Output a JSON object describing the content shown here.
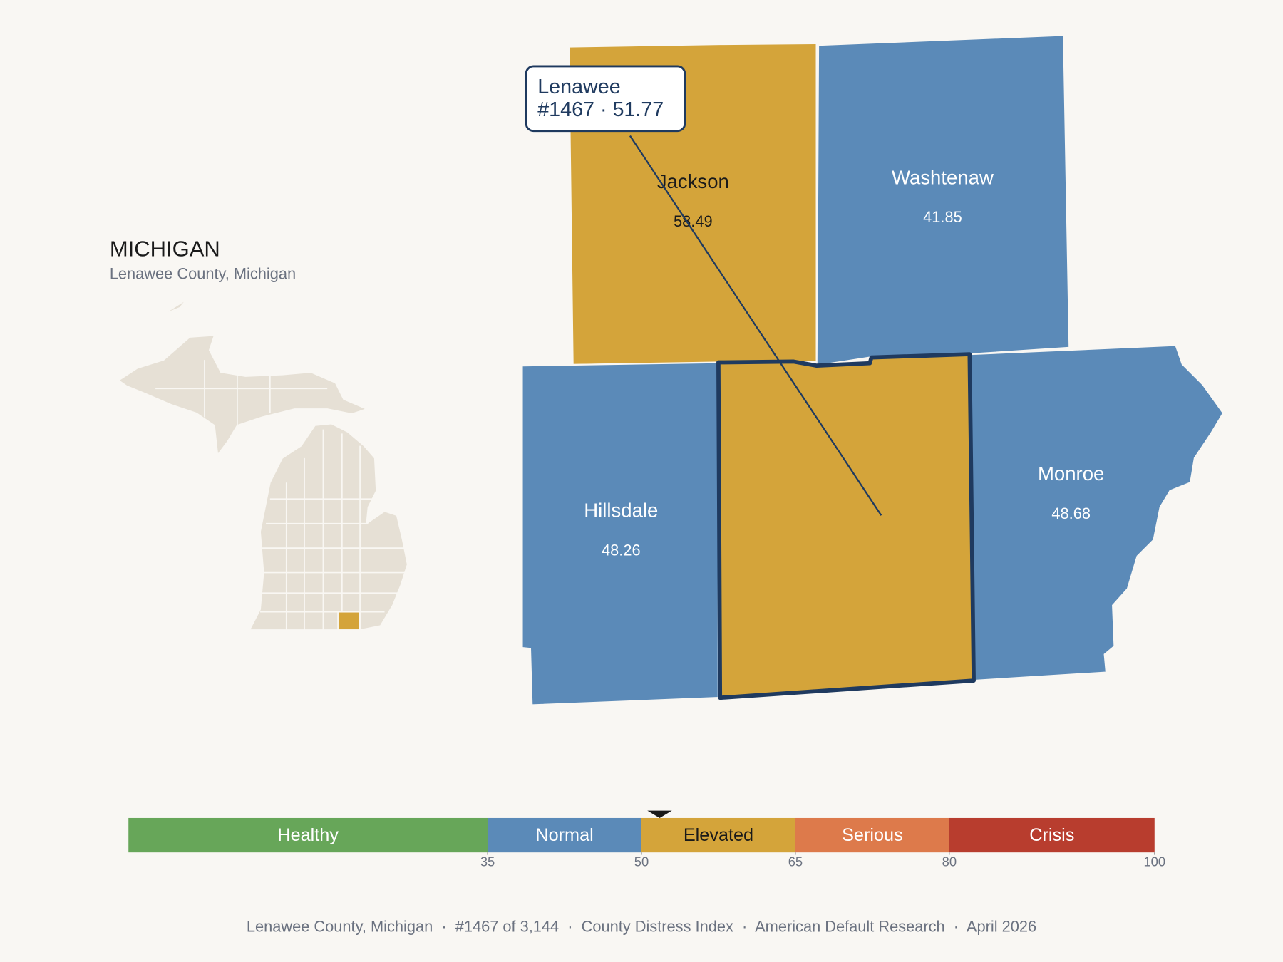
{
  "header": {
    "title": "MICHIGAN",
    "subtitle": "Lenawee County, Michigan"
  },
  "counties": [
    {
      "name": "Jackson",
      "value": 58.49
    },
    {
      "name": "Washtenaw",
      "value": 41.85
    },
    {
      "name": "Hillsdale",
      "value": 48.26
    },
    {
      "name": "Monroe",
      "value": 48.68
    }
  ],
  "callout": {
    "name": "Lenawee",
    "text": "#1467 · 51.77",
    "value": 51.77
  },
  "scale": {
    "min": 0,
    "max": 100,
    "bands": [
      {
        "label": "Healthy",
        "from": 0,
        "to": 35,
        "color": "#67a659"
      },
      {
        "label": "Normal",
        "from": 35,
        "to": 50,
        "color": "#5b8ab8"
      },
      {
        "label": "Elevated",
        "from": 50,
        "to": 65,
        "color": "#d4a43a"
      },
      {
        "label": "Serious",
        "from": 65,
        "to": 80,
        "color": "#dd7a4b"
      },
      {
        "label": "Crisis",
        "from": 80,
        "to": 100,
        "color": "#b83d2e"
      }
    ],
    "ticks": [
      35,
      50,
      65,
      80,
      100
    ]
  },
  "footer": "Lenawee County, Michigan  ·  #1467 of 3,144  ·  County Distress Index  ·  American Default Research  ·  April 2026"
}
